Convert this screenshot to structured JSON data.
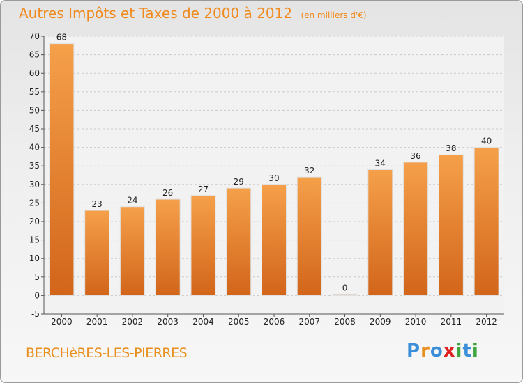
{
  "chart_data": {
    "type": "bar",
    "title": "Autres Impôts et Taxes de 2000 à 2012",
    "subtitle": "(en milliers d'€)",
    "categories": [
      "2000",
      "2001",
      "2002",
      "2003",
      "2004",
      "2005",
      "2006",
      "2007",
      "2008",
      "2009",
      "2010",
      "2011",
      "2012"
    ],
    "values": [
      68,
      23,
      24,
      26,
      27,
      29,
      30,
      32,
      0,
      34,
      36,
      38,
      40
    ],
    "ylim": [
      -5,
      70
    ],
    "yticks": [
      "-5",
      "0",
      "5",
      "10",
      "15",
      "20",
      "25",
      "30",
      "35",
      "40",
      "45",
      "50",
      "55",
      "60",
      "65",
      "70"
    ],
    "grid": true,
    "bar_color_top": "#f5a04a",
    "bar_color_bottom": "#d2651a"
  },
  "footer": {
    "commune": "BERCHèRES-LES-PIERRES",
    "logo_letters": [
      "P",
      "r",
      "o",
      "x",
      "i",
      "t",
      "i"
    ],
    "logo_colors": [
      "#3a8fd8",
      "#e8901f",
      "#3a8fd8",
      "#e02020",
      "#3fa63f",
      "#3a8fd8",
      "#3fa63f"
    ]
  }
}
